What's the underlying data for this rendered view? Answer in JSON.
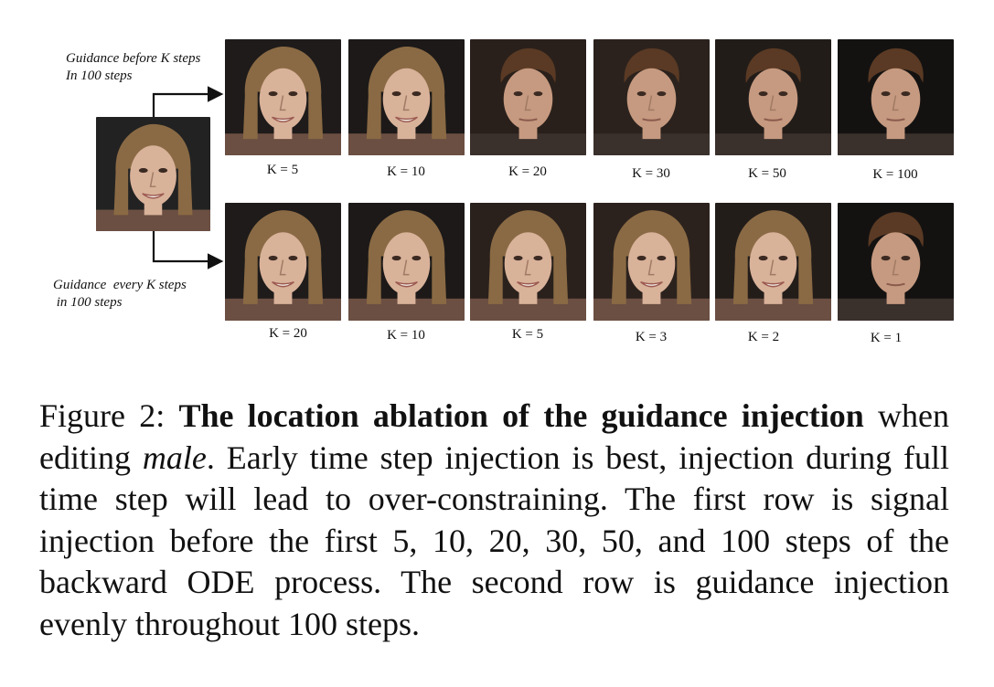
{
  "figure": {
    "top_row_label": "Guidance before K steps\nIn 100 steps",
    "bottom_row_label": "Guidance  every K steps\n in 100 steps",
    "source_image": {
      "face": "female",
      "background": "#222"
    },
    "top_row": [
      {
        "label": "K = 5",
        "face": "female",
        "bg": "#1e1b1a"
      },
      {
        "label": "K = 10",
        "face": "female",
        "bg": "#1c1918"
      },
      {
        "label": "K = 20",
        "face": "male",
        "bg": "#2a201b"
      },
      {
        "label": "K = 30",
        "face": "male",
        "bg": "#2b221d"
      },
      {
        "label": "K = 50",
        "face": "male",
        "bg": "#221c19"
      },
      {
        "label": "K = 100",
        "face": "male",
        "bg": "#141211"
      }
    ],
    "bottom_row": [
      {
        "label": "K = 20",
        "face": "female",
        "bg": "#1e1b1a"
      },
      {
        "label": "K = 10",
        "face": "female",
        "bg": "#1c1918"
      },
      {
        "label": "K = 5",
        "face": "female",
        "bg": "#2a211c"
      },
      {
        "label": "K = 3",
        "face": "female",
        "bg": "#2c221d"
      },
      {
        "label": "K = 2",
        "face": "female",
        "bg": "#231d1a"
      },
      {
        "label": "K = 1",
        "face": "male",
        "bg": "#141211"
      }
    ]
  },
  "caption": {
    "prefix": "Figure 2: ",
    "bold": "The location ablation of the guidance injection",
    "mid1": " when editing ",
    "italic": "male",
    "rest": ". Early time step injection is best, injection during full time step will lead to over-constraining. The first row is signal injection before the first 5, 10, 20, 30, 50, and 100 steps of the backward ODE process. The second row is guidance injection evenly throughout 100 steps."
  }
}
